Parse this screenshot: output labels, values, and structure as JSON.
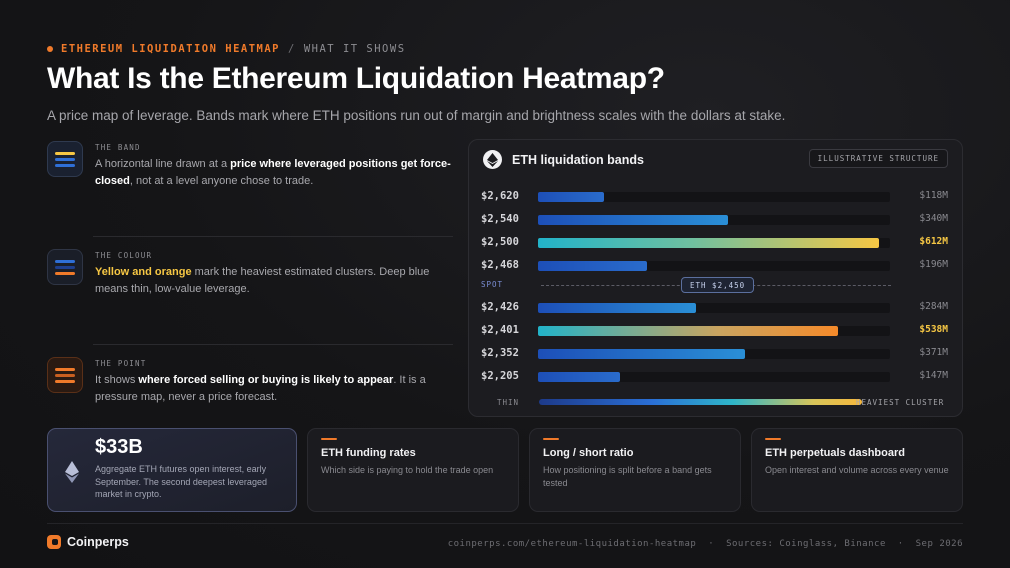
{
  "header": {
    "tag": "ETHEREUM LIQUIDATION HEATMAP",
    "separator": "/",
    "section": "WHAT IT SHOWS",
    "title": "What Is the Ethereum Liquidation Heatmap?",
    "subtitle": "A price map of leverage. Bands mark where ETH positions run out of margin and brightness scales with the dollars at stake."
  },
  "concepts": [
    {
      "label": "THE BAND",
      "text_a": "A horizontal line drawn at a ",
      "text_b": "price where leveraged positions get force-closed",
      "text_c": ", not at a level anyone chose to trade.",
      "icon": "band-lines-icon"
    },
    {
      "label": "THE COLOUR",
      "text_a": "Yellow and orange",
      "text_b": " mark the heaviest estimated clusters. Deep blue means thin, low-value leverage.",
      "icon": "colour-lines-icon"
    },
    {
      "label": "THE POINT",
      "text_a": "It shows ",
      "text_b": "where forced selling or buying is likely to appear",
      "text_c": ". It is a pressure map, never a price forecast.",
      "icon": "pressure-lines-icon"
    }
  ],
  "panel": {
    "title": "ETH liquidation bands",
    "badge": "ILLUSTRATIVE STRUCTURE",
    "spot_label": "SPOT",
    "spot_price": "ETH $2,450",
    "legend_thin": "THIN",
    "legend_heavy": "HEAVIEST CLUSTER"
  },
  "chart_data": {
    "type": "bar",
    "orientation": "horizontal",
    "title": "ETH liquidation bands",
    "categories": [
      "$2,620",
      "$2,540",
      "$2,500",
      "$2,468",
      "$2,426",
      "$2,401",
      "$2,352",
      "$2,205"
    ],
    "value_labels": [
      "$118M",
      "$340M",
      "$612M",
      "$196M",
      "$284M",
      "$538M",
      "$371M",
      "$147M"
    ],
    "values": [
      118,
      340,
      612,
      196,
      284,
      538,
      371,
      147
    ],
    "max": 612,
    "spot": "ETH $2,450",
    "colors": {
      "thin": "#1d4fb8",
      "mid": "#2a8fd6",
      "hot_start": "#22b3c9",
      "hot_end": "#f6c744",
      "orange": "#f58a2a"
    }
  },
  "cards": {
    "hero": {
      "value": "$33B",
      "text": "Aggregate ETH futures open interest, early September. The second deepest leveraged market in crypto.",
      "icon": "ethereum-icon"
    },
    "links": [
      {
        "title": "ETH funding rates",
        "text": "Which side is paying to hold the trade open"
      },
      {
        "title": "Long / short ratio",
        "text": "How positioning is split before a band gets tested"
      },
      {
        "title": "ETH perpetuals dashboard",
        "text": "Open interest and volume across every venue"
      }
    ]
  },
  "footer": {
    "brand": "Coinperps",
    "url": "coinperps.com/ethereum-liquidation-heatmap",
    "dot1": "·",
    "sources": "Sources: Coinglass, Binance",
    "dot2": "·",
    "date": "Sep 2026"
  },
  "accent_color": "#f07a2a"
}
